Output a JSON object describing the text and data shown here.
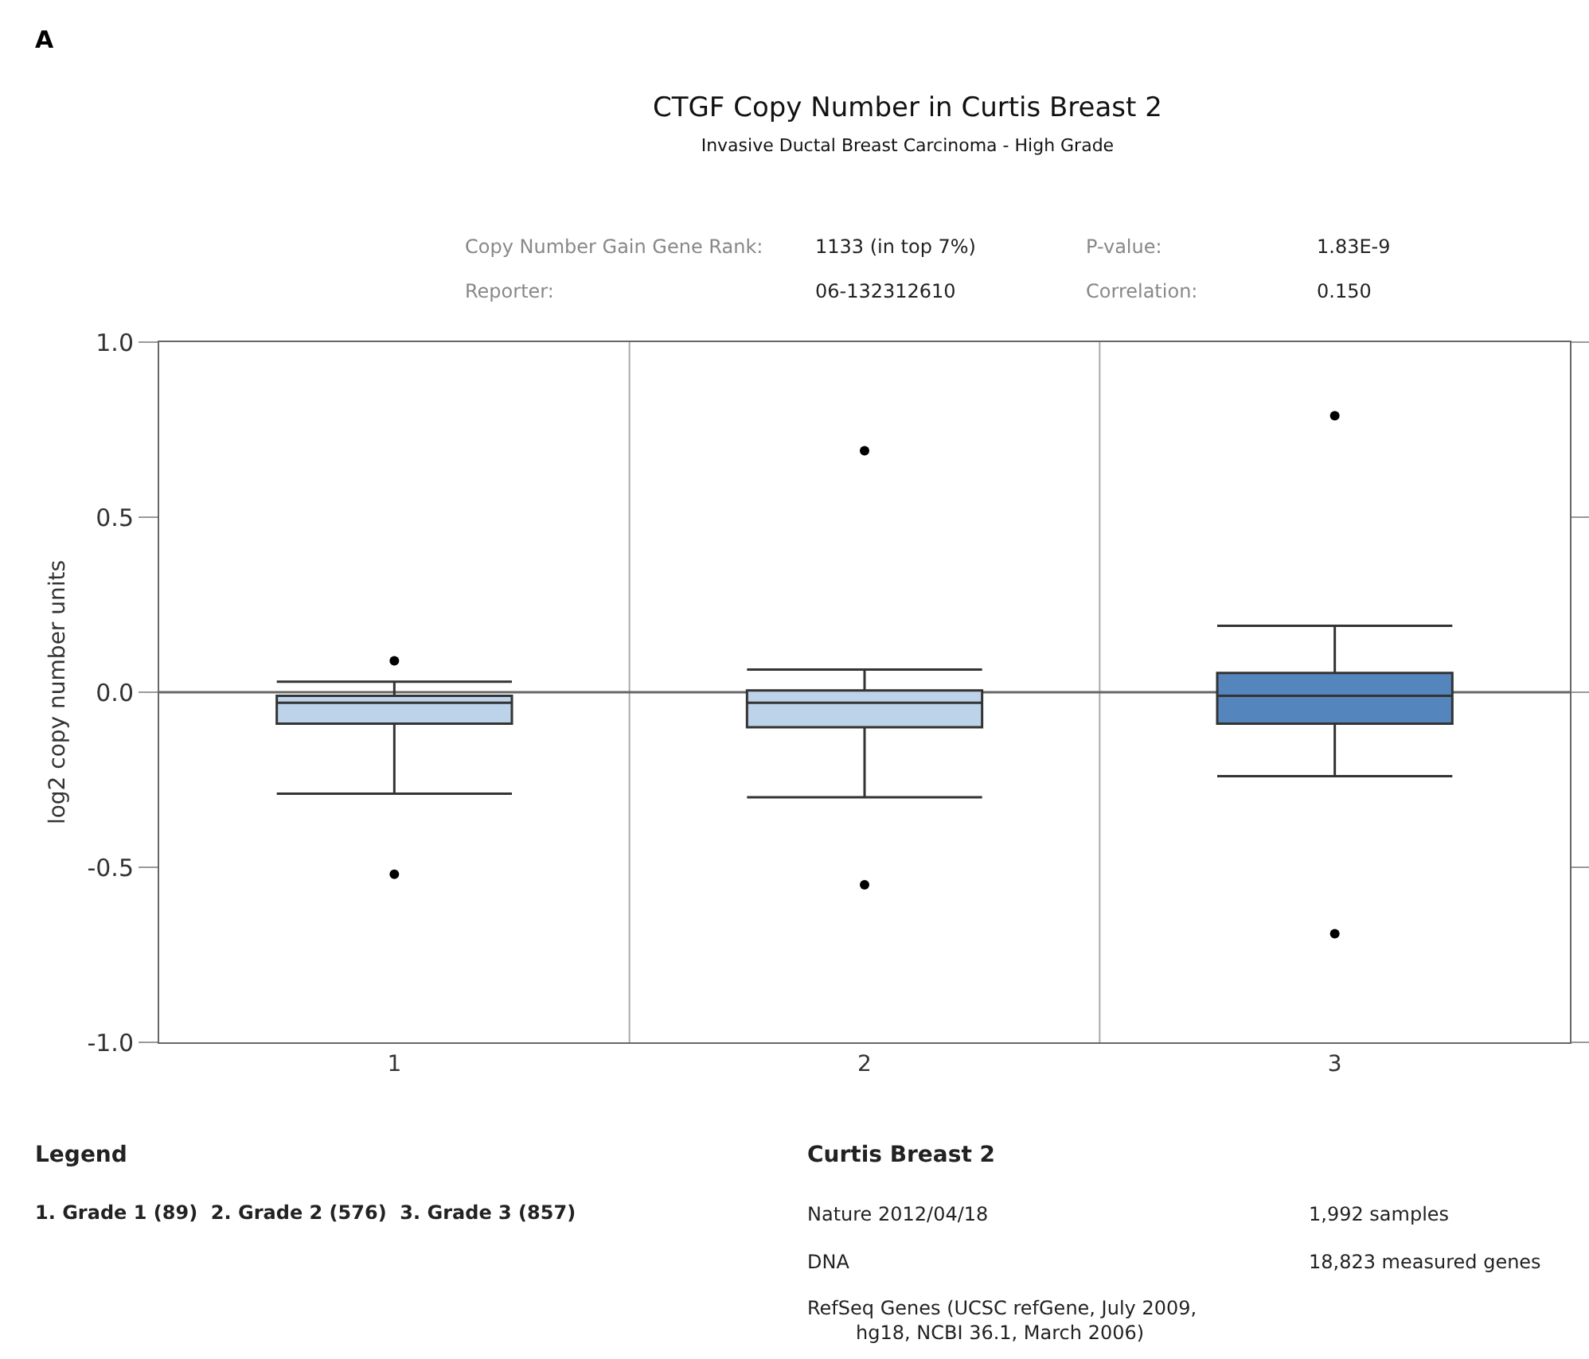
{
  "chart_data": {
    "type": "box",
    "title": "CTGF Copy Number in Curtis Breast 2",
    "subtitle": "Invasive Ductal Breast Carcinoma - High Grade",
    "ylabel": "log2 copy number units",
    "categories": [
      "1",
      "2",
      "3"
    ],
    "colors": [
      "#bcd3ea",
      "#bcd3ea",
      "#5585bd"
    ],
    "boxes": [
      {
        "low": -0.29,
        "q1": -0.09,
        "median": -0.03,
        "q3": -0.01,
        "high": 0.03,
        "outliers": [
          0.09,
          -0.52
        ]
      },
      {
        "low": -0.3,
        "q1": -0.1,
        "median": -0.03,
        "q3": 0.005,
        "high": 0.065,
        "outliers": [
          0.69,
          -0.55
        ]
      },
      {
        "low": -0.24,
        "q1": -0.09,
        "median": -0.01,
        "q3": 0.055,
        "high": 0.19,
        "outliers": [
          0.79,
          -0.69
        ]
      }
    ],
    "ylim": [
      -1.0,
      1.0
    ],
    "yticks": [
      {
        "value": -1.0,
        "label": "-1.0"
      },
      {
        "value": -0.5,
        "label": "-0.5"
      },
      {
        "value": 0,
        "label": "0.0"
      },
      {
        "value": 0.5,
        "label": "0.5"
      },
      {
        "value": 1.0,
        "label": "1.0"
      }
    ],
    "ref_lines": [
      {
        "axis": "y",
        "value": 0,
        "color": "#666666"
      }
    ],
    "grid": false,
    "annotations": [
      "A",
      "Copy Number Gain Gene Rank:",
      "1133 (in top 7%)",
      "P-value:",
      "1.83E-9",
      "Reporter:",
      "06-132312610",
      "Correlation:",
      "0.150",
      "Legend",
      "1. Grade 1 (89)  2. Grade 2 (576)  3. Grade 3 (857)",
      "Curtis Breast 2",
      "Nature 2012/04/18",
      "1,992 samples",
      "DNA",
      "18,823 measured genes",
      "RefSeq Genes (UCSC refGene, July 2009, hg18, NCBI 36.1, March 2006)"
    ]
  }
}
